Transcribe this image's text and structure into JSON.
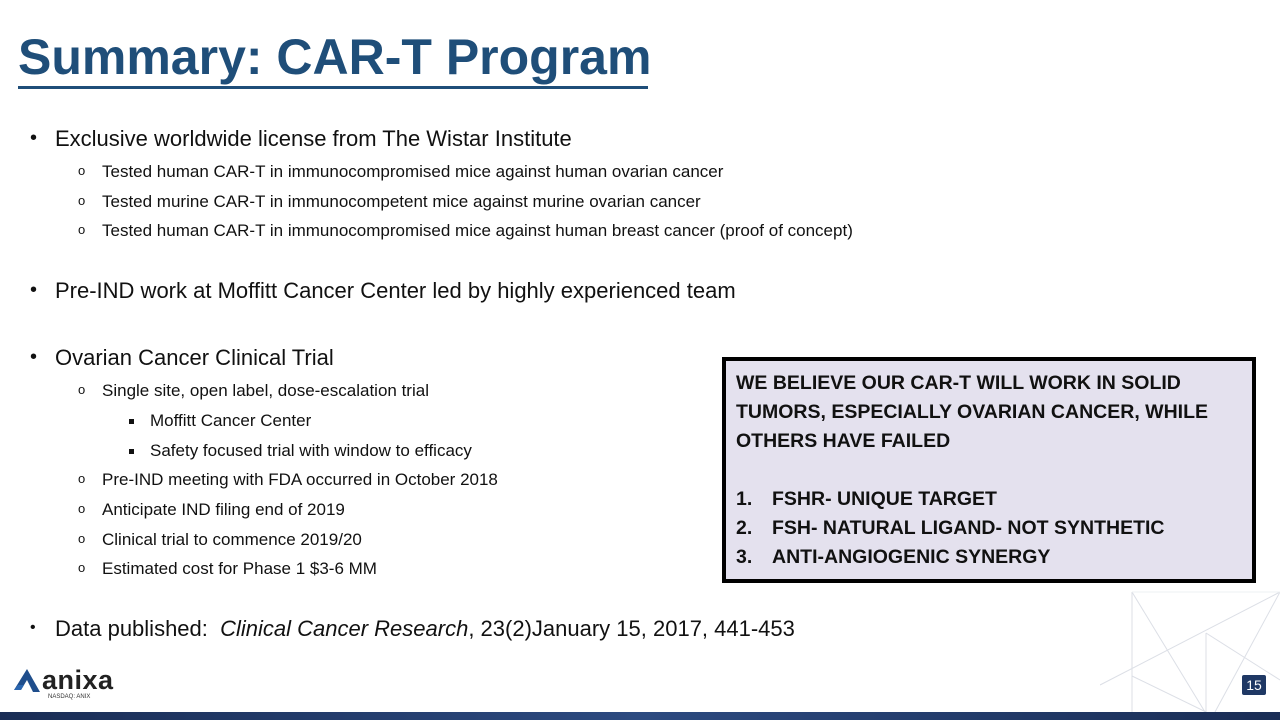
{
  "slide": {
    "title": "Summary: CAR-T Program",
    "page_number": "15",
    "logo": {
      "name": "anixa",
      "subtitle": "NASDAQ: ANIX"
    },
    "colors": {
      "title": "#1f4e79",
      "callout_bg": "#e4e1ee",
      "footer_bar": "#1f3864"
    },
    "bullets": [
      {
        "text": "Exclusive worldwide license from The Wistar Institute",
        "children": [
          "Tested human CAR-T in immunocompromised mice against human ovarian cancer",
          "Tested murine CAR-T in immunocompetent mice against murine ovarian cancer",
          "Tested human CAR-T in immunocompromised mice against human breast cancer (proof of concept)"
        ]
      },
      {
        "text": "Pre-IND work at Moffitt Cancer Center led by highly experienced team"
      },
      {
        "text": "Ovarian Cancer Clinical Trial",
        "children": [
          "Single site, open label, dose-escalation trial",
          "Moffitt Cancer Center",
          "Safety focused trial with window to efficacy",
          "Pre-IND meeting with FDA occurred in October 2018",
          "Anticipate IND filing end of 2019",
          "Clinical trial to commence 2019/20",
          "Estimated cost for Phase 1 $3-6 MM"
        ]
      },
      {
        "prefix": "Data published:  ",
        "journal": "Clinical Cancer Research",
        "suffix": ", 23(2)January 15, 2017, 441-453"
      }
    ],
    "callout": {
      "heading_lines": [
        "WE BELIEVE OUR CAR-T WILL WORK IN SOLID",
        "TUMORS, ESPECIALLY OVARIAN CANCER, WHILE",
        "OTHERS HAVE FAILED"
      ],
      "items": [
        {
          "num": "1.",
          "text": "FSHR- UNIQUE TARGET"
        },
        {
          "num": "2.",
          "text": "FSH- NATURAL LIGAND- NOT SYNTHETIC"
        },
        {
          "num": "3.",
          "text": "ANTI-ANGIOGENIC SYNERGY"
        }
      ]
    }
  }
}
